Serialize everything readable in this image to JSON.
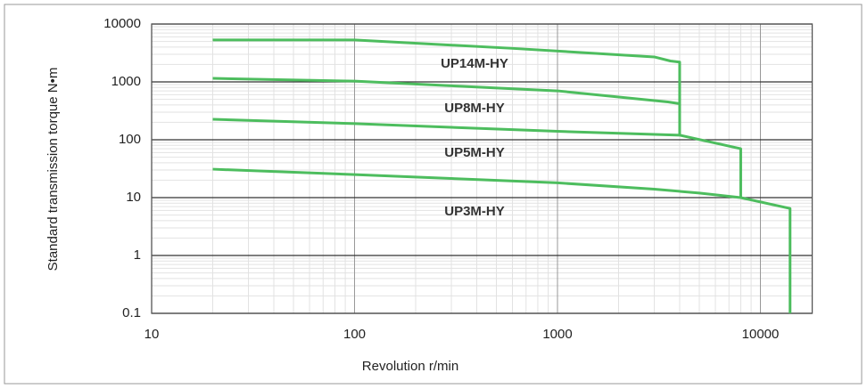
{
  "chart_data": {
    "type": "line",
    "xlabel": "Revolution r/min",
    "ylabel": "Standard transmission torque N•m",
    "xscale": "log",
    "yscale": "log",
    "xlim": [
      10,
      18000
    ],
    "ylim": [
      0.1,
      10000
    ],
    "xticks": [
      10,
      100,
      1000,
      10000
    ],
    "yticks": [
      0.1,
      1,
      10,
      100,
      1000,
      10000
    ],
    "grid": true,
    "minor_grid": true,
    "series": [
      {
        "name": "UP14M-HY",
        "color": "#4dbd5e",
        "x": [
          20,
          100,
          600,
          3000,
          3600,
          4000,
          4000
        ],
        "values": [
          5300,
          5300,
          3800,
          2700,
          2300,
          2200,
          120
        ]
      },
      {
        "name": "UP8M-HY",
        "color": "#4dbd5e",
        "x": [
          20,
          100,
          1000,
          3500,
          4000
        ],
        "values": [
          1150,
          1030,
          700,
          450,
          420
        ]
      },
      {
        "name": "UP5M-HY",
        "color": "#4dbd5e",
        "x": [
          20,
          100,
          1000,
          4000,
          8000,
          8000
        ],
        "values": [
          226,
          190,
          140,
          120,
          70,
          10
        ]
      },
      {
        "name": "UP3M-HY",
        "color": "#4dbd5e",
        "x": [
          20,
          100,
          1000,
          3000,
          5000,
          8000,
          14000,
          14000
        ],
        "values": [
          31,
          25,
          18,
          14,
          12,
          10,
          6.5,
          0.1
        ]
      }
    ]
  }
}
